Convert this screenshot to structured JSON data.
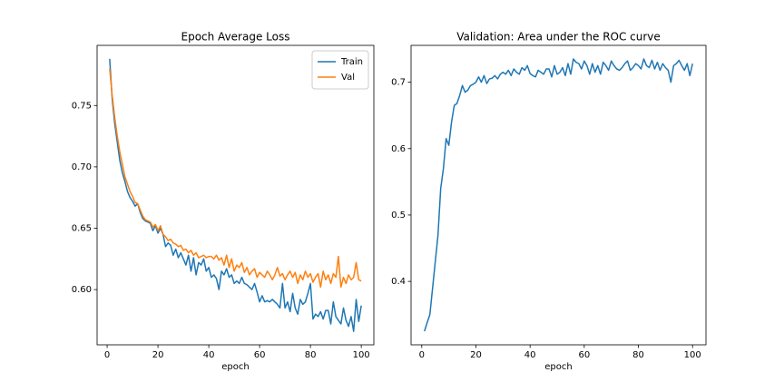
{
  "chart_data": [
    {
      "type": "line",
      "title": "Epoch Average Loss",
      "xlabel": "epoch",
      "x": [
        1,
        2,
        3,
        4,
        5,
        6,
        7,
        8,
        9,
        10,
        11,
        12,
        13,
        14,
        15,
        16,
        17,
        18,
        19,
        20,
        21,
        22,
        23,
        24,
        25,
        26,
        27,
        28,
        29,
        30,
        31,
        32,
        33,
        34,
        35,
        36,
        37,
        38,
        39,
        40,
        41,
        42,
        43,
        44,
        45,
        46,
        47,
        48,
        49,
        50,
        51,
        52,
        53,
        54,
        55,
        56,
        57,
        58,
        59,
        60,
        61,
        62,
        63,
        64,
        65,
        66,
        67,
        68,
        69,
        70,
        71,
        72,
        73,
        74,
        75,
        76,
        77,
        78,
        79,
        80,
        81,
        82,
        83,
        84,
        85,
        86,
        87,
        88,
        89,
        90,
        91,
        92,
        93,
        94,
        95,
        96,
        97,
        98,
        99,
        100
      ],
      "series": [
        {
          "name": "Train",
          "color": "#1f77b4",
          "values": [
            0.788,
            0.755,
            0.735,
            0.72,
            0.705,
            0.695,
            0.688,
            0.68,
            0.675,
            0.672,
            0.668,
            0.67,
            0.663,
            0.658,
            0.656,
            0.655,
            0.654,
            0.648,
            0.652,
            0.646,
            0.65,
            0.645,
            0.635,
            0.638,
            0.636,
            0.628,
            0.633,
            0.626,
            0.63,
            0.625,
            0.62,
            0.628,
            0.615,
            0.626,
            0.612,
            0.622,
            0.62,
            0.625,
            0.615,
            0.618,
            0.61,
            0.612,
            0.609,
            0.6,
            0.615,
            0.612,
            0.617,
            0.61,
            0.612,
            0.605,
            0.607,
            0.605,
            0.61,
            0.605,
            0.604,
            0.602,
            0.6,
            0.605,
            0.598,
            0.59,
            0.595,
            0.59,
            0.591,
            0.59,
            0.592,
            0.59,
            0.588,
            0.585,
            0.605,
            0.585,
            0.59,
            0.582,
            0.597,
            0.585,
            0.58,
            0.592,
            0.588,
            0.59,
            0.597,
            0.605,
            0.576,
            0.58,
            0.578,
            0.582,
            0.576,
            0.583,
            0.583,
            0.572,
            0.59,
            0.578,
            0.575,
            0.572,
            0.585,
            0.575,
            0.57,
            0.578,
            0.566,
            0.592,
            0.574,
            0.587
          ]
        },
        {
          "name": "Val",
          "color": "#ff7f0e",
          "values": [
            0.78,
            0.758,
            0.74,
            0.725,
            0.712,
            0.702,
            0.692,
            0.686,
            0.68,
            0.676,
            0.671,
            0.67,
            0.665,
            0.66,
            0.657,
            0.656,
            0.655,
            0.651,
            0.653,
            0.648,
            0.652,
            0.645,
            0.643,
            0.64,
            0.641,
            0.638,
            0.637,
            0.635,
            0.636,
            0.632,
            0.633,
            0.63,
            0.632,
            0.628,
            0.63,
            0.626,
            0.627,
            0.628,
            0.626,
            0.627,
            0.627,
            0.625,
            0.628,
            0.624,
            0.626,
            0.62,
            0.628,
            0.618,
            0.625,
            0.615,
            0.62,
            0.618,
            0.622,
            0.614,
            0.618,
            0.612,
            0.615,
            0.617,
            0.61,
            0.614,
            0.612,
            0.61,
            0.615,
            0.612,
            0.608,
            0.612,
            0.618,
            0.611,
            0.613,
            0.608,
            0.612,
            0.615,
            0.61,
            0.614,
            0.605,
            0.612,
            0.608,
            0.615,
            0.61,
            0.613,
            0.606,
            0.61,
            0.613,
            0.602,
            0.615,
            0.608,
            0.612,
            0.605,
            0.613,
            0.61,
            0.627,
            0.602,
            0.61,
            0.605,
            0.612,
            0.608,
            0.61,
            0.622,
            0.608,
            0.607
          ]
        }
      ],
      "xlim": [
        -3.95,
        104.95
      ],
      "ylim": [
        0.555,
        0.799
      ],
      "xticks": [
        0,
        20,
        40,
        60,
        80,
        100
      ],
      "yticks": [
        {
          "value": 0.6,
          "label": "0.60"
        },
        {
          "value": 0.65,
          "label": "0.65"
        },
        {
          "value": 0.7,
          "label": "0.70"
        },
        {
          "value": 0.75,
          "label": "0.75"
        }
      ],
      "legend": "upper right"
    },
    {
      "type": "line",
      "title": "Validation: Area under the ROC curve",
      "xlabel": "epoch",
      "x": [
        1,
        2,
        3,
        4,
        5,
        6,
        7,
        8,
        9,
        10,
        11,
        12,
        13,
        14,
        15,
        16,
        17,
        18,
        19,
        20,
        21,
        22,
        23,
        24,
        25,
        26,
        27,
        28,
        29,
        30,
        31,
        32,
        33,
        34,
        35,
        36,
        37,
        38,
        39,
        40,
        41,
        42,
        43,
        44,
        45,
        46,
        47,
        48,
        49,
        50,
        51,
        52,
        53,
        54,
        55,
        56,
        57,
        58,
        59,
        60,
        61,
        62,
        63,
        64,
        65,
        66,
        67,
        68,
        69,
        70,
        71,
        72,
        73,
        74,
        75,
        76,
        77,
        78,
        79,
        80,
        81,
        82,
        83,
        84,
        85,
        86,
        87,
        88,
        89,
        90,
        91,
        92,
        93,
        94,
        95,
        96,
        97,
        98,
        99,
        100
      ],
      "values": [
        0.325,
        0.338,
        0.35,
        0.39,
        0.43,
        0.47,
        0.54,
        0.57,
        0.615,
        0.605,
        0.64,
        0.665,
        0.668,
        0.68,
        0.695,
        0.685,
        0.688,
        0.695,
        0.697,
        0.7,
        0.708,
        0.7,
        0.71,
        0.698,
        0.705,
        0.706,
        0.71,
        0.705,
        0.712,
        0.715,
        0.712,
        0.718,
        0.71,
        0.72,
        0.715,
        0.712,
        0.722,
        0.718,
        0.725,
        0.713,
        0.71,
        0.708,
        0.718,
        0.715,
        0.712,
        0.72,
        0.72,
        0.708,
        0.725,
        0.712,
        0.715,
        0.722,
        0.71,
        0.728,
        0.712,
        0.735,
        0.73,
        0.728,
        0.72,
        0.732,
        0.725,
        0.712,
        0.728,
        0.715,
        0.725,
        0.712,
        0.73,
        0.725,
        0.718,
        0.732,
        0.725,
        0.72,
        0.718,
        0.722,
        0.728,
        0.732,
        0.718,
        0.722,
        0.728,
        0.725,
        0.72,
        0.735,
        0.725,
        0.722,
        0.733,
        0.72,
        0.73,
        0.718,
        0.728,
        0.722,
        0.718,
        0.7,
        0.725,
        0.728,
        0.733,
        0.725,
        0.718,
        0.728,
        0.71,
        0.728
      ],
      "color": "#1f77b4",
      "xlim": [
        -3.95,
        104.95
      ],
      "ylim": [
        0.3045,
        0.7555
      ],
      "xticks": [
        0,
        20,
        40,
        60,
        80,
        100
      ],
      "yticks": [
        0.4,
        0.5,
        0.6,
        0.7
      ]
    }
  ]
}
